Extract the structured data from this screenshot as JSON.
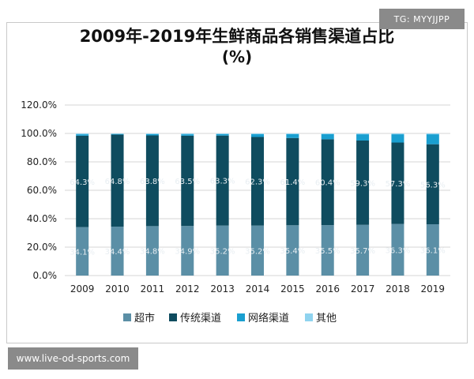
{
  "chart_data": {
    "type": "bar",
    "stacked": true,
    "title": "2009年-2019年生鲜商品各销售渠道占比",
    "subtitle": "(%)",
    "categories": [
      "2009",
      "2010",
      "2011",
      "2012",
      "2013",
      "2014",
      "2015",
      "2016",
      "2017",
      "2018",
      "2019"
    ],
    "ylim": [
      0,
      120
    ],
    "yticks": [
      "0.0%",
      "20.0%",
      "40.0%",
      "60.0%",
      "80.0%",
      "100.0%",
      "120.0%"
    ],
    "grid": true,
    "legend_position": "bottom",
    "series": [
      {
        "name": "超市",
        "color": "#5b8fa6",
        "values": [
          34.1,
          34.4,
          34.8,
          34.9,
          35.2,
          35.2,
          35.4,
          35.5,
          35.7,
          36.3,
          36.1
        ],
        "labels": [
          "34.1%",
          "34.4%",
          "34.8%",
          "34.9%",
          "35.2%",
          "35.2%",
          "35.4%",
          "35.5%",
          "35.7%",
          "36.3%",
          "36.1%"
        ]
      },
      {
        "name": "传统渠道",
        "color": "#0f4c5f",
        "values": [
          64.3,
          64.8,
          63.8,
          63.5,
          63.3,
          62.3,
          61.4,
          60.4,
          59.3,
          57.3,
          56.3
        ],
        "labels": [
          "64.3%",
          "64.8%",
          "63.8%",
          "63.5%",
          "63.3%",
          "62.3%",
          "61.4%",
          "60.4%",
          "59.3%",
          "57.3%",
          "56.3%"
        ]
      },
      {
        "name": "网络渠道",
        "color": "#1a9fd0",
        "values": [
          1.0,
          0.4,
          0.9,
          1.0,
          1.0,
          2.0,
          2.7,
          3.6,
          4.4,
          5.8,
          7.0
        ]
      },
      {
        "name": "其他",
        "color": "#8fd3ef",
        "values": [
          0.6,
          0.4,
          0.5,
          0.6,
          0.5,
          0.5,
          0.5,
          0.5,
          0.6,
          0.6,
          0.6
        ]
      }
    ]
  },
  "watermarks": {
    "top": "TG: MYYJJPP",
    "bottom": "www.live-od-sports.com"
  }
}
